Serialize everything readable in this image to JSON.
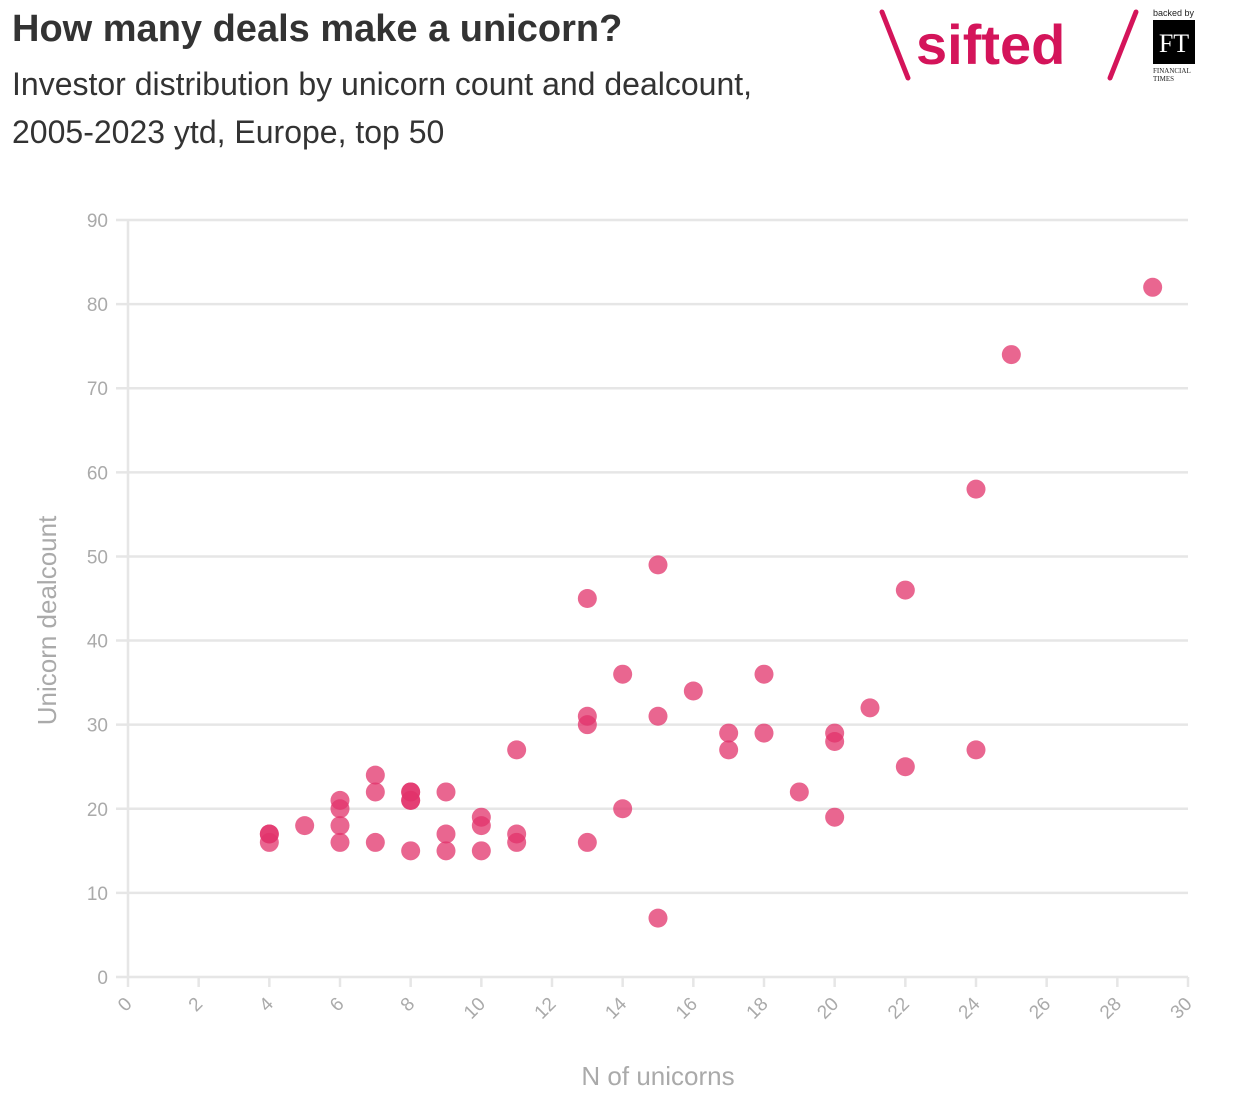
{
  "title": "How many deals make a unicorn?",
  "subtitle": "Investor distribution by unicorn count and dealcount, 2005-2023 ytd, Europe, top 50",
  "logo": {
    "brand": "sifted",
    "backed_by": "backed by",
    "ft_mark": "FT",
    "ft_name_line1": "FINANCIAL",
    "ft_name_line2": "TIMES"
  },
  "colors": {
    "point": "#e2336b",
    "brand": "#d4145a",
    "grid": "#e6e6e6",
    "tick_text": "#aaaaaa"
  },
  "chart_data": {
    "type": "scatter",
    "title": "How many deals make a unicorn?",
    "xlabel": "N of unicorns",
    "ylabel": "Unicorn dealcount",
    "xlim": [
      0,
      30
    ],
    "ylim": [
      0,
      90
    ],
    "xticks": [
      0,
      2,
      4,
      6,
      8,
      10,
      12,
      14,
      16,
      18,
      20,
      22,
      24,
      26,
      28,
      30
    ],
    "yticks": [
      0,
      10,
      20,
      30,
      40,
      50,
      60,
      70,
      80,
      90
    ],
    "grid": "horizontal",
    "points": [
      {
        "x": 29,
        "y": 82
      },
      {
        "x": 25,
        "y": 74
      },
      {
        "x": 24,
        "y": 58
      },
      {
        "x": 15,
        "y": 49
      },
      {
        "x": 22,
        "y": 46
      },
      {
        "x": 13,
        "y": 45
      },
      {
        "x": 14,
        "y": 36
      },
      {
        "x": 18,
        "y": 36
      },
      {
        "x": 16,
        "y": 34
      },
      {
        "x": 21,
        "y": 32
      },
      {
        "x": 13,
        "y": 31
      },
      {
        "x": 15,
        "y": 31
      },
      {
        "x": 13,
        "y": 30
      },
      {
        "x": 17,
        "y": 29
      },
      {
        "x": 18,
        "y": 29
      },
      {
        "x": 20,
        "y": 29
      },
      {
        "x": 20,
        "y": 28
      },
      {
        "x": 11,
        "y": 27
      },
      {
        "x": 17,
        "y": 27
      },
      {
        "x": 24,
        "y": 27
      },
      {
        "x": 22,
        "y": 25
      },
      {
        "x": 7,
        "y": 24
      },
      {
        "x": 7,
        "y": 22
      },
      {
        "x": 8,
        "y": 22
      },
      {
        "x": 8,
        "y": 22
      },
      {
        "x": 9,
        "y": 22
      },
      {
        "x": 19,
        "y": 22
      },
      {
        "x": 6,
        "y": 21
      },
      {
        "x": 8,
        "y": 21
      },
      {
        "x": 8,
        "y": 21
      },
      {
        "x": 6,
        "y": 20
      },
      {
        "x": 14,
        "y": 20
      },
      {
        "x": 10,
        "y": 19
      },
      {
        "x": 20,
        "y": 19
      },
      {
        "x": 5,
        "y": 18
      },
      {
        "x": 6,
        "y": 18
      },
      {
        "x": 10,
        "y": 18
      },
      {
        "x": 4,
        "y": 17
      },
      {
        "x": 4,
        "y": 17
      },
      {
        "x": 9,
        "y": 17
      },
      {
        "x": 11,
        "y": 17
      },
      {
        "x": 4,
        "y": 16
      },
      {
        "x": 6,
        "y": 16
      },
      {
        "x": 7,
        "y": 16
      },
      {
        "x": 11,
        "y": 16
      },
      {
        "x": 13,
        "y": 16
      },
      {
        "x": 8,
        "y": 15
      },
      {
        "x": 9,
        "y": 15
      },
      {
        "x": 10,
        "y": 15
      },
      {
        "x": 15,
        "y": 7
      }
    ]
  }
}
